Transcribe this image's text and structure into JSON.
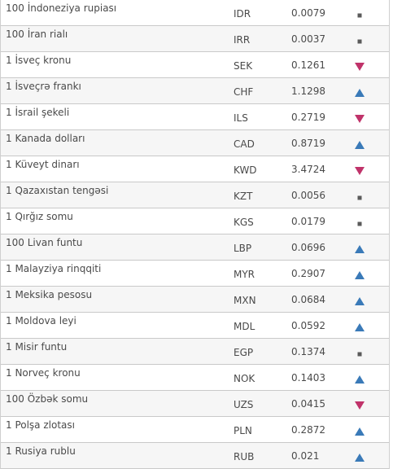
{
  "colors": {
    "up": "#3a7ab8",
    "down": "#c0336a",
    "flat": "#5a5a5a",
    "row_border": "#c9c9c9"
  },
  "rows": [
    {
      "name": "100 İndoneziya rupiası",
      "code": "IDR",
      "value": "0.0079",
      "trend": "flat"
    },
    {
      "name": "100 İran rialı",
      "code": "IRR",
      "value": "0.0037",
      "trend": "flat"
    },
    {
      "name": "1 İsveç kronu",
      "code": "SEK",
      "value": "0.1261",
      "trend": "down"
    },
    {
      "name": "1 İsveçrə frankı",
      "code": "CHF",
      "value": "1.1298",
      "trend": "up"
    },
    {
      "name": "1 İsrail şekeli",
      "code": "ILS",
      "value": "0.2719",
      "trend": "down"
    },
    {
      "name": "1 Kanada dolları",
      "code": "CAD",
      "value": "0.8719",
      "trend": "up"
    },
    {
      "name": "1 Küveyt dinarı",
      "code": "KWD",
      "value": "3.4724",
      "trend": "down"
    },
    {
      "name": "1 Qazaxıstan tengəsi",
      "code": "KZT",
      "value": "0.0056",
      "trend": "flat"
    },
    {
      "name": "1 Qırğız somu",
      "code": "KGS",
      "value": "0.0179",
      "trend": "flat"
    },
    {
      "name": "100 Livan funtu",
      "code": "LBP",
      "value": "0.0696",
      "trend": "up"
    },
    {
      "name": "1 Malayziya rinqqiti",
      "code": "MYR",
      "value": "0.2907",
      "trend": "up"
    },
    {
      "name": "1 Meksika pesosu",
      "code": "MXN",
      "value": "0.0684",
      "trend": "up"
    },
    {
      "name": "1 Moldova leyi",
      "code": "MDL",
      "value": "0.0592",
      "trend": "up"
    },
    {
      "name": "1 Misir funtu",
      "code": "EGP",
      "value": "0.1374",
      "trend": "flat"
    },
    {
      "name": "1 Norveç kronu",
      "code": "NOK",
      "value": "0.1403",
      "trend": "up"
    },
    {
      "name": "100 Özbək somu",
      "code": "UZS",
      "value": "0.0415",
      "trend": "down"
    },
    {
      "name": "1 Polşa zlotası",
      "code": "PLN",
      "value": "0.2872",
      "trend": "up"
    },
    {
      "name": "1 Rusiya rublu",
      "code": "RUB",
      "value": "0.021",
      "trend": "up"
    }
  ]
}
